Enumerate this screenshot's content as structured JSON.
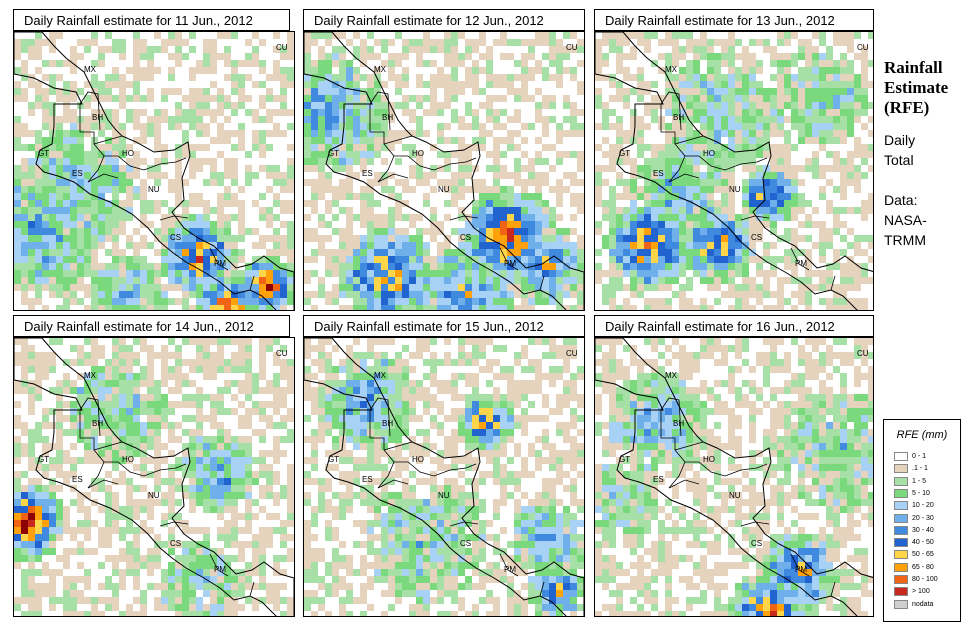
{
  "colors": {
    "land_outline": "#000000",
    "scale": [
      "#ffffff",
      "#e6d3bd",
      "#a6e0a6",
      "#79d97c",
      "#a7d1f5",
      "#6fb0ea",
      "#3f89de",
      "#2264cf",
      "#ffd54a",
      "#ffa10a",
      "#f06414",
      "#c9281e",
      "#8b0000",
      "#cfcfcf"
    ]
  },
  "panels": [
    {
      "title": "Daily Rainfall estimate for  11 Jun., 2012"
    },
    {
      "title": "Daily Rainfall estimate for  12 Jun., 2012"
    },
    {
      "title": "Daily Rainfall estimate for  13 Jun., 2012"
    },
    {
      "title": "Daily Rainfall estimate for  14 Jun., 2012"
    },
    {
      "title": "Daily Rainfall estimate for  15 Jun., 2012"
    },
    {
      "title": "Daily Rainfall estimate for  16 Jun., 2012"
    }
  ],
  "country_labels": [
    "MX",
    "BH",
    "GT",
    "HO",
    "ES",
    "NU",
    "CS",
    "PM",
    "CU"
  ],
  "sidebar": {
    "title_line1": "Rainfall",
    "title_line2": "Estimate",
    "title_line3": "(RFE)",
    "desc_line1": "Daily",
    "desc_line2": "Total",
    "source_line1": "Data:",
    "source_line2": "NASA-",
    "source_line3": "TRMM"
  },
  "legend": {
    "title": "RFE (mm)",
    "items": [
      {
        "label": "0 - 1",
        "color": "#ffffff"
      },
      {
        "label": ".1 - 1",
        "color": "#e6d3bd"
      },
      {
        "label": "1 - 5",
        "color": "#a6e0a6"
      },
      {
        "label": "5 - 10",
        "color": "#79d97c"
      },
      {
        "label": "10 - 20",
        "color": "#a7d1f5"
      },
      {
        "label": "20 - 30",
        "color": "#6fb0ea"
      },
      {
        "label": "30 - 40",
        "color": "#3f89de"
      },
      {
        "label": "40 - 50",
        "color": "#2264cf"
      },
      {
        "label": "50 - 65",
        "color": "#ffd54a"
      },
      {
        "label": "65 - 80",
        "color": "#ffa10a"
      },
      {
        "label": "80 - 100",
        "color": "#f06414"
      },
      {
        "label": "> 100",
        "color": "#c9281e"
      },
      {
        "label": "nodata",
        "color": "#cfcfcf"
      }
    ]
  }
}
